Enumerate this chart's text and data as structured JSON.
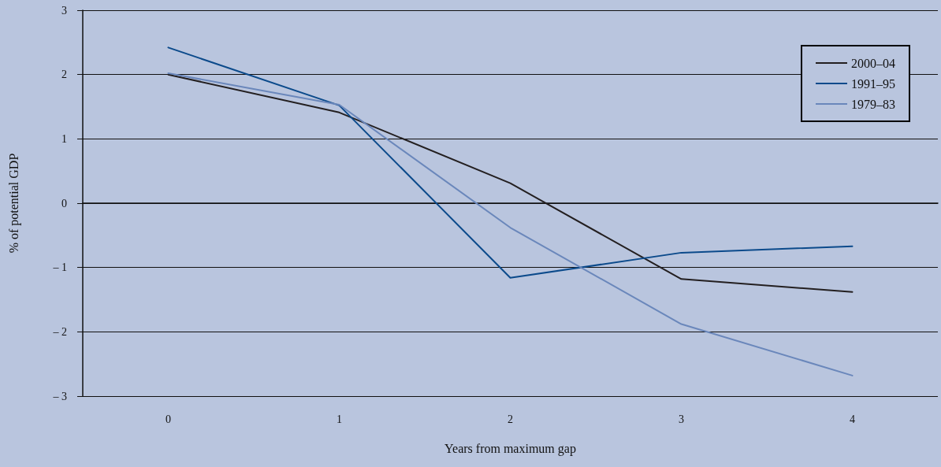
{
  "chart_data": {
    "type": "line",
    "xlabel": "Years from maximum gap",
    "ylabel": "% of potential GDP",
    "categories": [
      "0",
      "1",
      "2",
      "3",
      "4"
    ],
    "series": [
      {
        "name": "2000–04",
        "color": "#231f20",
        "values": [
          2.0,
          1.41,
          0.31,
          -1.18,
          -1.38
        ]
      },
      {
        "name": "1991–95",
        "color": "#0b4a8b",
        "values": [
          2.42,
          1.52,
          -1.16,
          -0.77,
          -0.67
        ]
      },
      {
        "name": "1979–83",
        "color": "#6a87bb",
        "values": [
          2.02,
          1.53,
          -0.38,
          -1.88,
          -2.68
        ]
      }
    ],
    "ylim": [
      -3,
      3
    ],
    "yticks": [
      {
        "value": -3,
        "label": "– 3"
      },
      {
        "value": -2,
        "label": "– 2"
      },
      {
        "value": -1,
        "label": "– 1"
      },
      0,
      1,
      2,
      3
    ],
    "grid": "y",
    "legend": "top right",
    "marker": "none",
    "line_style": "solid"
  }
}
